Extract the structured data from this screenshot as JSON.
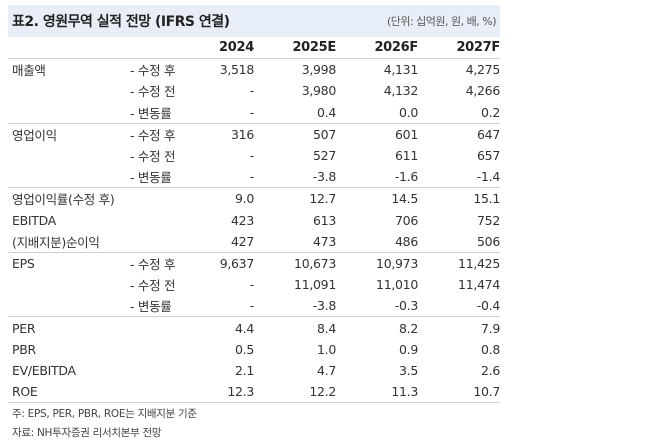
{
  "title": "표2. 영원무역 실적 전망 (IFRS 연결)",
  "unit": "(단위: 십억원, 원, 배, %)",
  "columns": [
    "2024",
    "2025E",
    "2026F",
    "2027F"
  ],
  "rows": [
    {
      "label": "매출액",
      "sub": "- 수정 후",
      "values": [
        "3,518",
        "3,998",
        "4,131",
        "4,275"
      ],
      "sep": false
    },
    {
      "label": "",
      "sub": "- 수정 전",
      "values": [
        "-",
        "3,980",
        "4,132",
        "4,266"
      ],
      "sep": false
    },
    {
      "label": "",
      "sub": "- 변동률",
      "values": [
        "-",
        "0.4",
        "0.0",
        "0.2"
      ],
      "sep": false
    },
    {
      "label": "영업이익",
      "sub": "- 수정 후",
      "values": [
        "316",
        "507",
        "601",
        "647"
      ],
      "sep": true
    },
    {
      "label": "",
      "sub": "- 수정 전",
      "values": [
        "-",
        "527",
        "611",
        "657"
      ],
      "sep": false
    },
    {
      "label": "",
      "sub": "- 변동률",
      "values": [
        "-",
        "-3.8",
        "-1.6",
        "-1.4"
      ],
      "sep": false
    },
    {
      "label": "영업이익률(수정 후)",
      "sub": "",
      "values": [
        "9.0",
        "12.7",
        "14.5",
        "15.1"
      ],
      "sep": true
    },
    {
      "label": "EBITDA",
      "sub": "",
      "values": [
        "423",
        "613",
        "706",
        "752"
      ],
      "sep": false
    },
    {
      "label": "(지배지분)순이익",
      "sub": "",
      "values": [
        "427",
        "473",
        "486",
        "506"
      ],
      "sep": false
    },
    {
      "label": "EPS",
      "sub": "- 수정 후",
      "values": [
        "9,637",
        "10,673",
        "10,973",
        "11,425"
      ],
      "sep": true
    },
    {
      "label": "",
      "sub": "- 수정 전",
      "values": [
        "-",
        "11,091",
        "11,010",
        "11,474"
      ],
      "sep": false
    },
    {
      "label": "",
      "sub": "- 변동률",
      "values": [
        "-",
        "-3.8",
        "-0.3",
        "-0.4"
      ],
      "sep": false
    },
    {
      "label": "PER",
      "sub": "",
      "values": [
        "4.4",
        "8.4",
        "8.2",
        "7.9"
      ],
      "sep": true
    },
    {
      "label": "PBR",
      "sub": "",
      "values": [
        "0.5",
        "1.0",
        "0.9",
        "0.8"
      ],
      "sep": false
    },
    {
      "label": "EV/EBITDA",
      "sub": "",
      "values": [
        "2.1",
        "4.7",
        "3.5",
        "2.6"
      ],
      "sep": false
    },
    {
      "label": "ROE",
      "sub": "",
      "values": [
        "12.3",
        "12.2",
        "11.3",
        "10.7"
      ],
      "sep": false
    }
  ],
  "notes": [
    "주: EPS, PER, PBR, ROE는 지배지분 기준",
    "자료: NH투자증권 리서치본부 전망"
  ]
}
